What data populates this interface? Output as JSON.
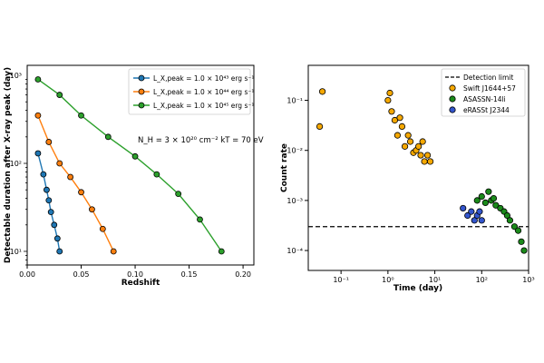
{
  "chart_data": [
    {
      "type": "line",
      "xlabel": "Redshift",
      "ylabel": "Detectable duration after X-ray peak (day)",
      "xlim": [
        0,
        0.21
      ],
      "ylim": [
        7,
        1300
      ],
      "yscale": "log",
      "xticks": [
        "0.00",
        "0.05",
        "0.10",
        "0.15",
        "0.20"
      ],
      "yticks": [
        "10¹",
        "10²",
        "10³"
      ],
      "annotation": "N_H = 3 × 10²⁰ cm⁻²   kT = 70 eV",
      "legend_position": "top-right",
      "series": [
        {
          "name": "L_X,peak = 1.0 × 10⁴³ erg s⁻¹",
          "color": "#1f77b4",
          "x": [
            0.01,
            0.015,
            0.018,
            0.02,
            0.022,
            0.025,
            0.028,
            0.03
          ],
          "y": [
            130,
            75,
            50,
            38,
            28,
            20,
            14,
            10
          ]
        },
        {
          "name": "L_X,peak = 1.0 × 10⁴⁴ erg s⁻¹",
          "color": "#ff7f0e",
          "x": [
            0.01,
            0.02,
            0.03,
            0.04,
            0.05,
            0.06,
            0.07,
            0.08
          ],
          "y": [
            350,
            175,
            100,
            70,
            47,
            30,
            18,
            10
          ]
        },
        {
          "name": "L_X,peak = 1.0 × 10⁴⁵ erg s⁻¹",
          "color": "#2ca02c",
          "x": [
            0.01,
            0.03,
            0.05,
            0.075,
            0.1,
            0.12,
            0.14,
            0.16,
            0.18
          ],
          "y": [
            900,
            600,
            350,
            200,
            120,
            75,
            45,
            23,
            10
          ]
        }
      ]
    },
    {
      "type": "scatter",
      "xlabel": "Time (day)",
      "ylabel": "Count rate",
      "xscale": "log",
      "yscale": "log",
      "xlim": [
        0.02,
        1000
      ],
      "ylim": [
        4e-05,
        0.5
      ],
      "xticks": [
        "10⁻¹",
        "10⁰",
        "10¹",
        "10²",
        "10³"
      ],
      "yticks": [
        "10⁻⁴",
        "10⁻³",
        "10⁻²",
        "10⁻¹"
      ],
      "detection_limit": 0.0003,
      "legend_position": "top-right",
      "series": [
        {
          "name": "Detection limit",
          "color": "#000000",
          "style": "dashed"
        },
        {
          "name": "Swift J1644+57",
          "color": "#f5a800",
          "x": [
            0.035,
            0.04,
            1.0,
            1.1,
            1.2,
            1.4,
            1.6,
            1.8,
            2.0,
            2.3,
            2.7,
            3.0,
            3.5,
            4.0,
            4.5,
            5.0,
            5.5,
            6.0,
            7.0,
            8.0
          ],
          "y": [
            0.03,
            0.15,
            0.1,
            0.14,
            0.06,
            0.04,
            0.02,
            0.045,
            0.03,
            0.012,
            0.02,
            0.015,
            0.009,
            0.01,
            0.012,
            0.008,
            0.015,
            0.006,
            0.008,
            0.006
          ]
        },
        {
          "name": "ASASSN-14li",
          "color": "#1a8a1a",
          "x": [
            80,
            100,
            120,
            140,
            160,
            180,
            200,
            250,
            300,
            350,
            400,
            500,
            600,
            700,
            800
          ],
          "y": [
            0.001,
            0.0012,
            0.0009,
            0.0015,
            0.001,
            0.0011,
            0.0008,
            0.0007,
            0.0006,
            0.0005,
            0.0004,
            0.0003,
            0.00025,
            0.00015,
            0.0001
          ]
        },
        {
          "name": "eRASSt J2344",
          "color": "#3355cc",
          "x": [
            40,
            50,
            60,
            70,
            80,
            90,
            100
          ],
          "y": [
            0.0007,
            0.0005,
            0.0006,
            0.0004,
            0.0005,
            0.0006,
            0.0004
          ]
        }
      ]
    }
  ]
}
